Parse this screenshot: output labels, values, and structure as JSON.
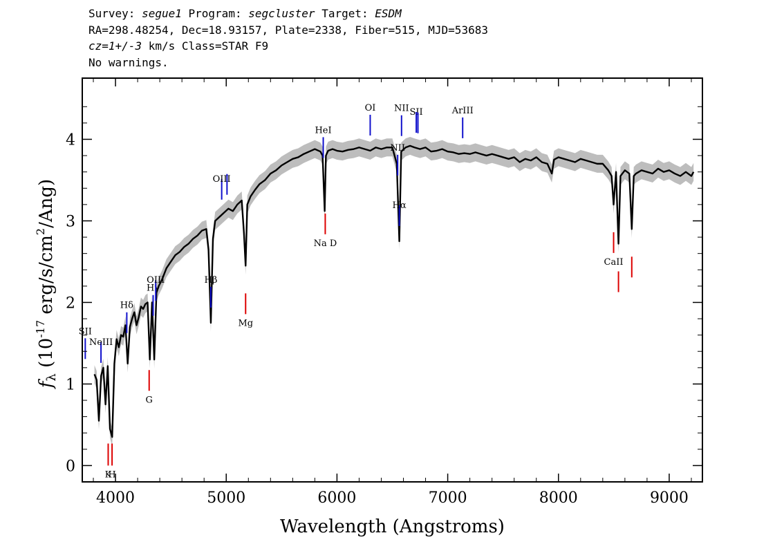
{
  "header": {
    "survey_label": "Survey:",
    "survey": "segue1",
    "program_label": "Program:",
    "program": "segcluster",
    "target_label": "Target:",
    "target": "ESDM",
    "coords": "RA=298.48254, Dec=18.93157, Plate=2338, Fiber=515, MJD=53683",
    "cz_value": "cz=1+/-3",
    "cz_rest": " km/s Class=STAR F9",
    "warnings": "No warnings."
  },
  "colors": {
    "spectrum": "#000000",
    "error_band": "#bdbdbd",
    "emission_line": "#1010cc",
    "absorption_line": "#dd0000"
  },
  "chart_data": {
    "type": "line",
    "title": "",
    "xlabel": "Wavelength (Angstroms)",
    "ylabel": "f_λ (10^-17 erg/s/cm^2/Ang)",
    "xlim": [
      3700,
      9300
    ],
    "ylim": [
      -0.2,
      4.75
    ],
    "xticks": [
      4000,
      5000,
      6000,
      7000,
      8000,
      9000
    ],
    "yticks": [
      0,
      1,
      2,
      3,
      4
    ],
    "grid": false,
    "legend": "none",
    "series": [
      {
        "x": [
          3810,
          3830,
          3850,
          3870,
          3890,
          3910,
          3930,
          3950,
          3970,
          3990,
          4010,
          4030,
          4050,
          4070,
          4090,
          4110,
          4130,
          4150,
          4170,
          4190,
          4210,
          4230,
          4250,
          4270,
          4290,
          4310,
          4330,
          4350,
          4370,
          4390,
          4420,
          4460,
          4500,
          4540,
          4580,
          4620,
          4660,
          4700,
          4740,
          4780,
          4820,
          4840,
          4861,
          4880,
          4900,
          4940,
          4980,
          5020,
          5060,
          5100,
          5140,
          5160,
          5175,
          5190,
          5220,
          5260,
          5300,
          5350,
          5400,
          5450,
          5500,
          5550,
          5600,
          5650,
          5700,
          5750,
          5800,
          5850,
          5870,
          5889,
          5900,
          5920,
          5960,
          6000,
          6050,
          6100,
          6150,
          6200,
          6250,
          6300,
          6350,
          6400,
          6450,
          6500,
          6540,
          6563,
          6580,
          6620,
          6660,
          6700,
          6750,
          6800,
          6850,
          6900,
          6950,
          7000,
          7050,
          7100,
          7150,
          7200,
          7250,
          7300,
          7350,
          7400,
          7450,
          7500,
          7550,
          7600,
          7650,
          7700,
          7750,
          7800,
          7850,
          7900,
          7940,
          7960,
          8000,
          8050,
          8100,
          8150,
          8200,
          8250,
          8300,
          8350,
          8400,
          8450,
          8480,
          8498,
          8520,
          8542,
          8560,
          8600,
          8640,
          8662,
          8680,
          8700,
          8750,
          8800,
          8850,
          8900,
          8950,
          9000,
          9050,
          9100,
          9150,
          9200,
          9220
        ],
        "y": [
          1.12,
          1.05,
          0.55,
          1.1,
          1.2,
          0.75,
          1.22,
          0.45,
          0.35,
          1.25,
          1.55,
          1.45,
          1.6,
          1.58,
          1.72,
          1.25,
          1.7,
          1.8,
          1.88,
          1.72,
          1.82,
          1.95,
          1.92,
          1.98,
          2.0,
          1.3,
          2.0,
          1.3,
          2.12,
          2.2,
          2.28,
          2.42,
          2.5,
          2.58,
          2.62,
          2.68,
          2.72,
          2.78,
          2.82,
          2.88,
          2.9,
          2.65,
          1.75,
          2.78,
          3.0,
          3.05,
          3.1,
          3.15,
          3.12,
          3.2,
          3.25,
          2.85,
          2.45,
          3.2,
          3.3,
          3.38,
          3.45,
          3.5,
          3.58,
          3.62,
          3.68,
          3.72,
          3.76,
          3.78,
          3.82,
          3.85,
          3.88,
          3.85,
          3.8,
          3.12,
          3.8,
          3.86,
          3.88,
          3.86,
          3.85,
          3.87,
          3.88,
          3.9,
          3.88,
          3.86,
          3.9,
          3.88,
          3.9,
          3.9,
          3.7,
          2.75,
          3.85,
          3.9,
          3.92,
          3.9,
          3.88,
          3.9,
          3.85,
          3.86,
          3.88,
          3.85,
          3.84,
          3.82,
          3.83,
          3.82,
          3.84,
          3.82,
          3.8,
          3.82,
          3.8,
          3.78,
          3.76,
          3.78,
          3.72,
          3.76,
          3.74,
          3.78,
          3.72,
          3.7,
          3.58,
          3.75,
          3.78,
          3.76,
          3.74,
          3.72,
          3.76,
          3.74,
          3.72,
          3.7,
          3.7,
          3.62,
          3.55,
          3.2,
          3.6,
          2.72,
          3.55,
          3.62,
          3.58,
          2.9,
          3.55,
          3.58,
          3.62,
          3.6,
          3.58,
          3.64,
          3.6,
          3.62,
          3.58,
          3.55,
          3.6,
          3.55,
          3.6
        ]
      }
    ],
    "lines": [
      {
        "label": "SII",
        "wavelength": 3727,
        "kind": "emission",
        "label_side": "above"
      },
      {
        "label": "NeIII",
        "wavelength": 3869,
        "kind": "emission",
        "label_side": "above"
      },
      {
        "label": "Hδ",
        "wavelength": 4102,
        "kind": "emission",
        "label_side": "above"
      },
      {
        "label": "Hγ",
        "wavelength": 4340,
        "kind": "emission",
        "label_side": "above"
      },
      {
        "label": "OIII",
        "wavelength": 4363,
        "kind": "emission",
        "label_side": "above"
      },
      {
        "label": "Hβ",
        "wavelength": 4861,
        "kind": "emission",
        "label_side": "above"
      },
      {
        "label": "OIII",
        "wavelength": 4959,
        "kind": "emission",
        "label_side": "above"
      },
      {
        "label": "",
        "wavelength": 5007,
        "kind": "emission",
        "label_side": "above"
      },
      {
        "label": "HeI",
        "wavelength": 5876,
        "kind": "emission",
        "label_side": "above"
      },
      {
        "label": "OI",
        "wavelength": 6300,
        "kind": "emission",
        "label_side": "above"
      },
      {
        "label": "NII",
        "wavelength": 6548,
        "kind": "emission",
        "label_side": "above"
      },
      {
        "label": "Hα",
        "wavelength": 6563,
        "kind": "emission",
        "label_side": "above"
      },
      {
        "label": "NII",
        "wavelength": 6583,
        "kind": "emission",
        "label_side": "above"
      },
      {
        "label": "SII",
        "wavelength": 6716,
        "kind": "emission",
        "label_side": "above"
      },
      {
        "label": "",
        "wavelength": 6731,
        "kind": "emission",
        "label_side": "above"
      },
      {
        "label": "ArIII",
        "wavelength": 7135,
        "kind": "emission",
        "label_side": "above"
      },
      {
        "label": "K",
        "wavelength": 3934,
        "kind": "absorption",
        "label_side": "below"
      },
      {
        "label": "H",
        "wavelength": 3969,
        "kind": "absorption",
        "label_side": "below"
      },
      {
        "label": "G",
        "wavelength": 4304,
        "kind": "absorption",
        "label_side": "below"
      },
      {
        "label": "Mg",
        "wavelength": 5175,
        "kind": "absorption",
        "label_side": "below"
      },
      {
        "label": "Na D",
        "wavelength": 5894,
        "kind": "absorption",
        "label_side": "below"
      },
      {
        "label": "CaII",
        "wavelength": 8498,
        "kind": "absorption",
        "label_side": "below"
      },
      {
        "label": "",
        "wavelength": 8542,
        "kind": "absorption",
        "label_side": "below"
      },
      {
        "label": "",
        "wavelength": 8662,
        "kind": "absorption",
        "label_side": "below"
      }
    ]
  }
}
